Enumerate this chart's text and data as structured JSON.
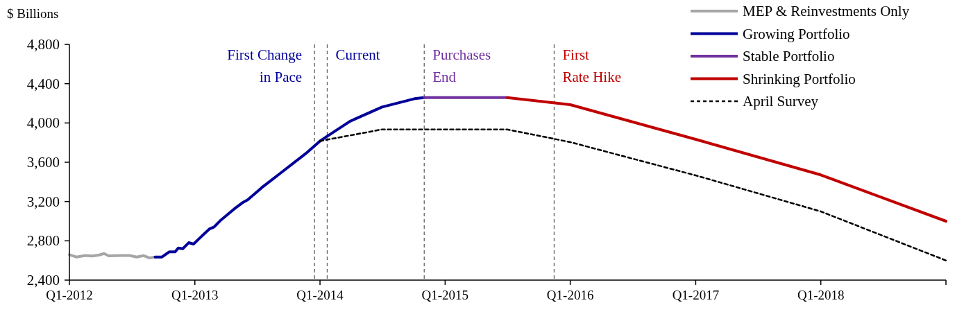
{
  "chart_data": {
    "type": "line",
    "ylabel": "$ Billions",
    "legend": "top right",
    "xlim": [
      "2012-01-01",
      "2019-01-01"
    ],
    "ylim": [
      2400,
      4800
    ],
    "xticks": [
      {
        "value": "2012-01-01",
        "label": "Q1-2012"
      },
      {
        "value": "2013-01-01",
        "label": "Q1-2013"
      },
      {
        "value": "2014-01-01",
        "label": "Q1-2014"
      },
      {
        "value": "2015-01-01",
        "label": "Q1-2015"
      },
      {
        "value": "2016-01-01",
        "label": "Q1-2016"
      },
      {
        "value": "2017-01-01",
        "label": "Q1-2017"
      },
      {
        "value": "2018-01-01",
        "label": "Q1-2018"
      },
      {
        "value": "2019-01-01",
        "label": null
      }
    ],
    "yticks": [
      {
        "value": 2400,
        "label": "2,400"
      },
      {
        "value": 2800,
        "label": "2,800"
      },
      {
        "value": 3200,
        "label": "3,200"
      },
      {
        "value": 3600,
        "label": "3,600"
      },
      {
        "value": 4000,
        "label": "4,000"
      },
      {
        "value": 4400,
        "label": "4,400"
      },
      {
        "value": 4800,
        "label": "4,800"
      }
    ],
    "series": [
      {
        "name": "MEP & Reinvestments Only",
        "color": "#a6a6a6",
        "line_style": "solid",
        "x": [
          "2012-01-01",
          "2012-01-21",
          "2012-02-17",
          "2012-03-08",
          "2012-03-28",
          "2012-04-11",
          "2012-04-25",
          "2012-05-15",
          "2012-06-05",
          "2012-06-25",
          "2012-07-15",
          "2012-08-04",
          "2012-08-21",
          "2012-09-07"
        ],
        "values": [
          2659,
          2635,
          2651,
          2645,
          2656,
          2670,
          2647,
          2649,
          2651,
          2651,
          2635,
          2649,
          2626,
          2635
        ]
      },
      {
        "name": "Growing Portfolio",
        "color": "#000099",
        "line_style": "solid",
        "x": [
          "2012-09-07",
          "2012-09-27",
          "2012-10-18",
          "2012-11-04",
          "2012-11-14",
          "2012-11-27",
          "2012-12-14",
          "2012-12-28",
          "2013-01-21",
          "2013-02-13",
          "2013-02-26",
          "2013-03-16",
          "2013-04-25",
          "2013-05-22",
          "2013-06-04",
          "2013-07-15",
          "2013-09-07",
          "2013-11-20",
          "2014-01-01",
          "2014-03-29",
          "2014-07-01",
          "2014-10-04",
          "2014-11-01"
        ],
        "values": [
          2635,
          2635,
          2687,
          2687,
          2727,
          2720,
          2781,
          2767,
          2847,
          2922,
          2941,
          3005,
          3122,
          3193,
          3217,
          3341,
          3487,
          3687,
          3816,
          4016,
          4162,
          4247,
          4259
        ]
      },
      {
        "name": "Stable Portfolio",
        "color": "#7030a0",
        "line_style": "solid",
        "x": [
          "2014-11-01",
          "2015-07-01"
        ],
        "values": [
          4259,
          4259
        ]
      },
      {
        "name": "Shrinking Portfolio",
        "color": "#c00000",
        "line_style": "solid",
        "x": [
          "2015-07-01",
          "2016-01-01",
          "2017-01-01",
          "2018-01-01",
          "2019-01-01"
        ],
        "values": [
          4259,
          4186,
          3833,
          3471,
          3000
        ]
      },
      {
        "name": "April Survey",
        "color": "#000000",
        "line_style": "dashed",
        "x": [
          "2014-01-01",
          "2014-07-01",
          "2015-07-01",
          "2016-01-01",
          "2017-01-01",
          "2018-01-01",
          "2019-01-01"
        ],
        "values": [
          3816,
          3934,
          3934,
          3805,
          3466,
          3099,
          2600
        ]
      }
    ],
    "ref_lines": [
      {
        "axis": "x",
        "value": "2013-12-16",
        "label": "First Change\nin Pace",
        "color": "#555555",
        "line_style": "dashed"
      },
      {
        "axis": "x",
        "value": "2014-01-22",
        "label": "Current",
        "color": "#555555",
        "line_style": "dashed"
      },
      {
        "axis": "x",
        "value": "2014-11-01",
        "label": "Purchases\nEnd",
        "color": "#555555",
        "line_style": "dashed"
      },
      {
        "axis": "x",
        "value": "2015-11-15",
        "label": "First\nRate Hike",
        "color": "#555555",
        "line_style": "dashed"
      }
    ]
  }
}
